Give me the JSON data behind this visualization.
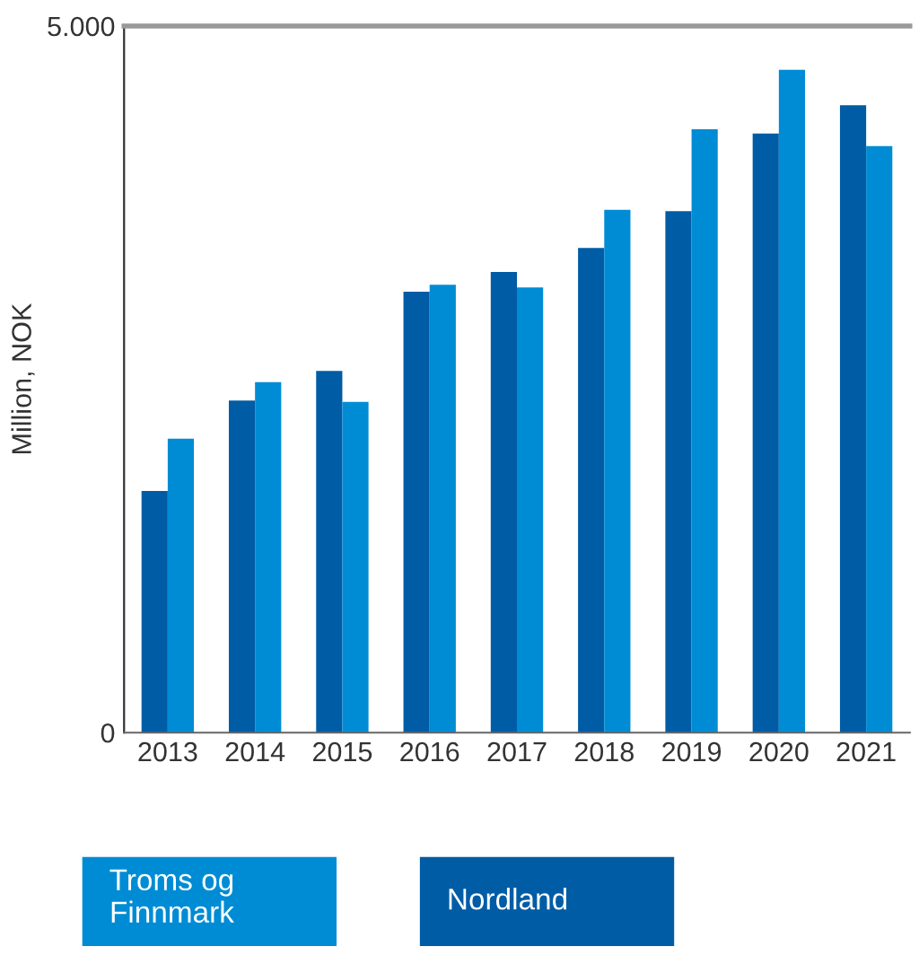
{
  "chart_data": {
    "type": "bar",
    "ylabel": "Million, NOK",
    "categories": [
      "2013",
      "2014",
      "2015",
      "2016",
      "2017",
      "2018",
      "2019",
      "2020",
      "2021"
    ],
    "series": [
      {
        "name": "Nordland",
        "color": "#005ca5",
        "values": [
          1710,
          2350,
          2560,
          3120,
          3260,
          3430,
          3690,
          4240,
          4440
        ]
      },
      {
        "name": "Troms og\nFinnmark",
        "color": "#008cd4",
        "values": [
          2080,
          2480,
          2340,
          3170,
          3150,
          3700,
          4270,
          4690,
          4150
        ]
      }
    ],
    "ylim": [
      0,
      5000
    ],
    "yticks": [
      0,
      {
        "value": 5000,
        "label": "5.000"
      }
    ],
    "grid": false,
    "legend": "bottom"
  }
}
